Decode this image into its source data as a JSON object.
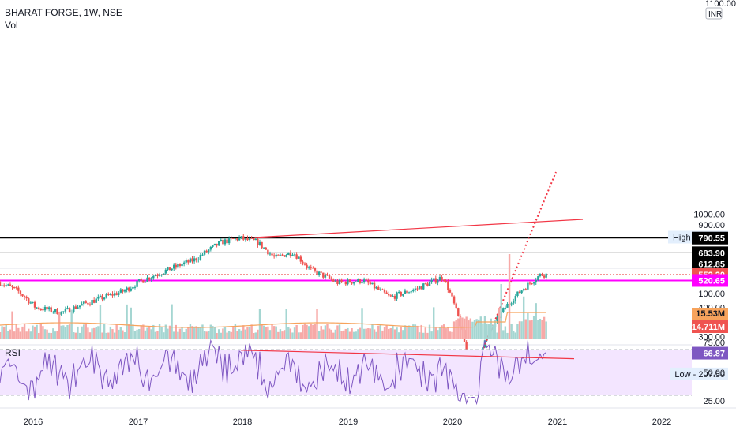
{
  "header": {
    "title": "BHARAT FORGE, 1W, NSE",
    "volume_label": "Vol"
  },
  "price_axis": {
    "currency_label": "INR",
    "top_tick_partial": "1100.00",
    "ticks": [
      "1000.00",
      "900.00",
      "400.00",
      "300.00"
    ]
  },
  "markers": {
    "high_label": "High",
    "high_value": "798.00",
    "low_label": "Low",
    "low_value": "207.50"
  },
  "levels": [
    {
      "value": "790.55",
      "bg": "#000000",
      "fg": "#ffffff",
      "line": "#000000"
    },
    {
      "value": "683.90",
      "bg": "#000000",
      "fg": "#ffffff",
      "line": "#000000"
    },
    {
      "value": "612.85",
      "bg": "#000000",
      "fg": "#ffffff",
      "line": "#000000"
    },
    {
      "value": "552.20",
      "bg": "#ef5350",
      "fg": "#ffffff",
      "line": "#ef5350"
    },
    {
      "value": "520.65",
      "bg": "#ff00ff",
      "fg": "#ffffff",
      "line": "#ff00ff"
    }
  ],
  "volume_axis": {
    "ticks": [
      "100.00",
      "75.00"
    ],
    "ma_value": "15.53M",
    "volume_value": "14.711M"
  },
  "rsi": {
    "label": "RSI",
    "value": "66.87",
    "ticks": [
      "50.00",
      "25.00"
    ]
  },
  "time_axis": {
    "labels": [
      "2016",
      "2017",
      "2018",
      "2019",
      "2020",
      "2021",
      "2022"
    ]
  },
  "colors": {
    "up": "#26a69a",
    "down": "#ef5350",
    "magenta": "#ff00ff",
    "trend": "#f23645",
    "rsi_line": "#7e57c2",
    "rsi_band": "#f3e5ff",
    "vol_ma": "#f7a35c"
  },
  "chart_data": {
    "type": "candlestick",
    "title": "BHARAT FORGE, 1W, NSE",
    "x_range": [
      "2016",
      "2022"
    ],
    "y_range": [
      200,
      1100
    ],
    "price_path": [
      [
        "2015-11",
        510
      ],
      [
        "2016-01",
        470
      ],
      [
        "2016-03",
        400
      ],
      [
        "2016-06",
        380
      ],
      [
        "2016-09",
        420
      ],
      [
        "2017-01",
        470
      ],
      [
        "2017-03",
        520
      ],
      [
        "2017-06",
        580
      ],
      [
        "2017-09",
        640
      ],
      [
        "2017-12",
        760
      ],
      [
        "2018-02",
        790
      ],
      [
        "2018-04",
        760
      ],
      [
        "2018-06",
        650
      ],
      [
        "2018-08",
        690
      ],
      [
        "2018-10",
        580
      ],
      [
        "2019-01",
        510
      ],
      [
        "2019-04",
        520
      ],
      [
        "2019-07",
        440
      ],
      [
        "2019-10",
        480
      ],
      [
        "2020-01",
        540
      ],
      [
        "2020-03",
        330
      ],
      [
        "2020-04",
        210
      ],
      [
        "2020-06",
        300
      ],
      [
        "2020-08",
        400
      ],
      [
        "2020-10",
        480
      ],
      [
        "2020-12",
        552
      ]
    ],
    "horizontal_levels": [
      798.0,
      790.55,
      683.9,
      612.85,
      552.2,
      520.65,
      207.5
    ],
    "rsi_last": 66.87
  }
}
